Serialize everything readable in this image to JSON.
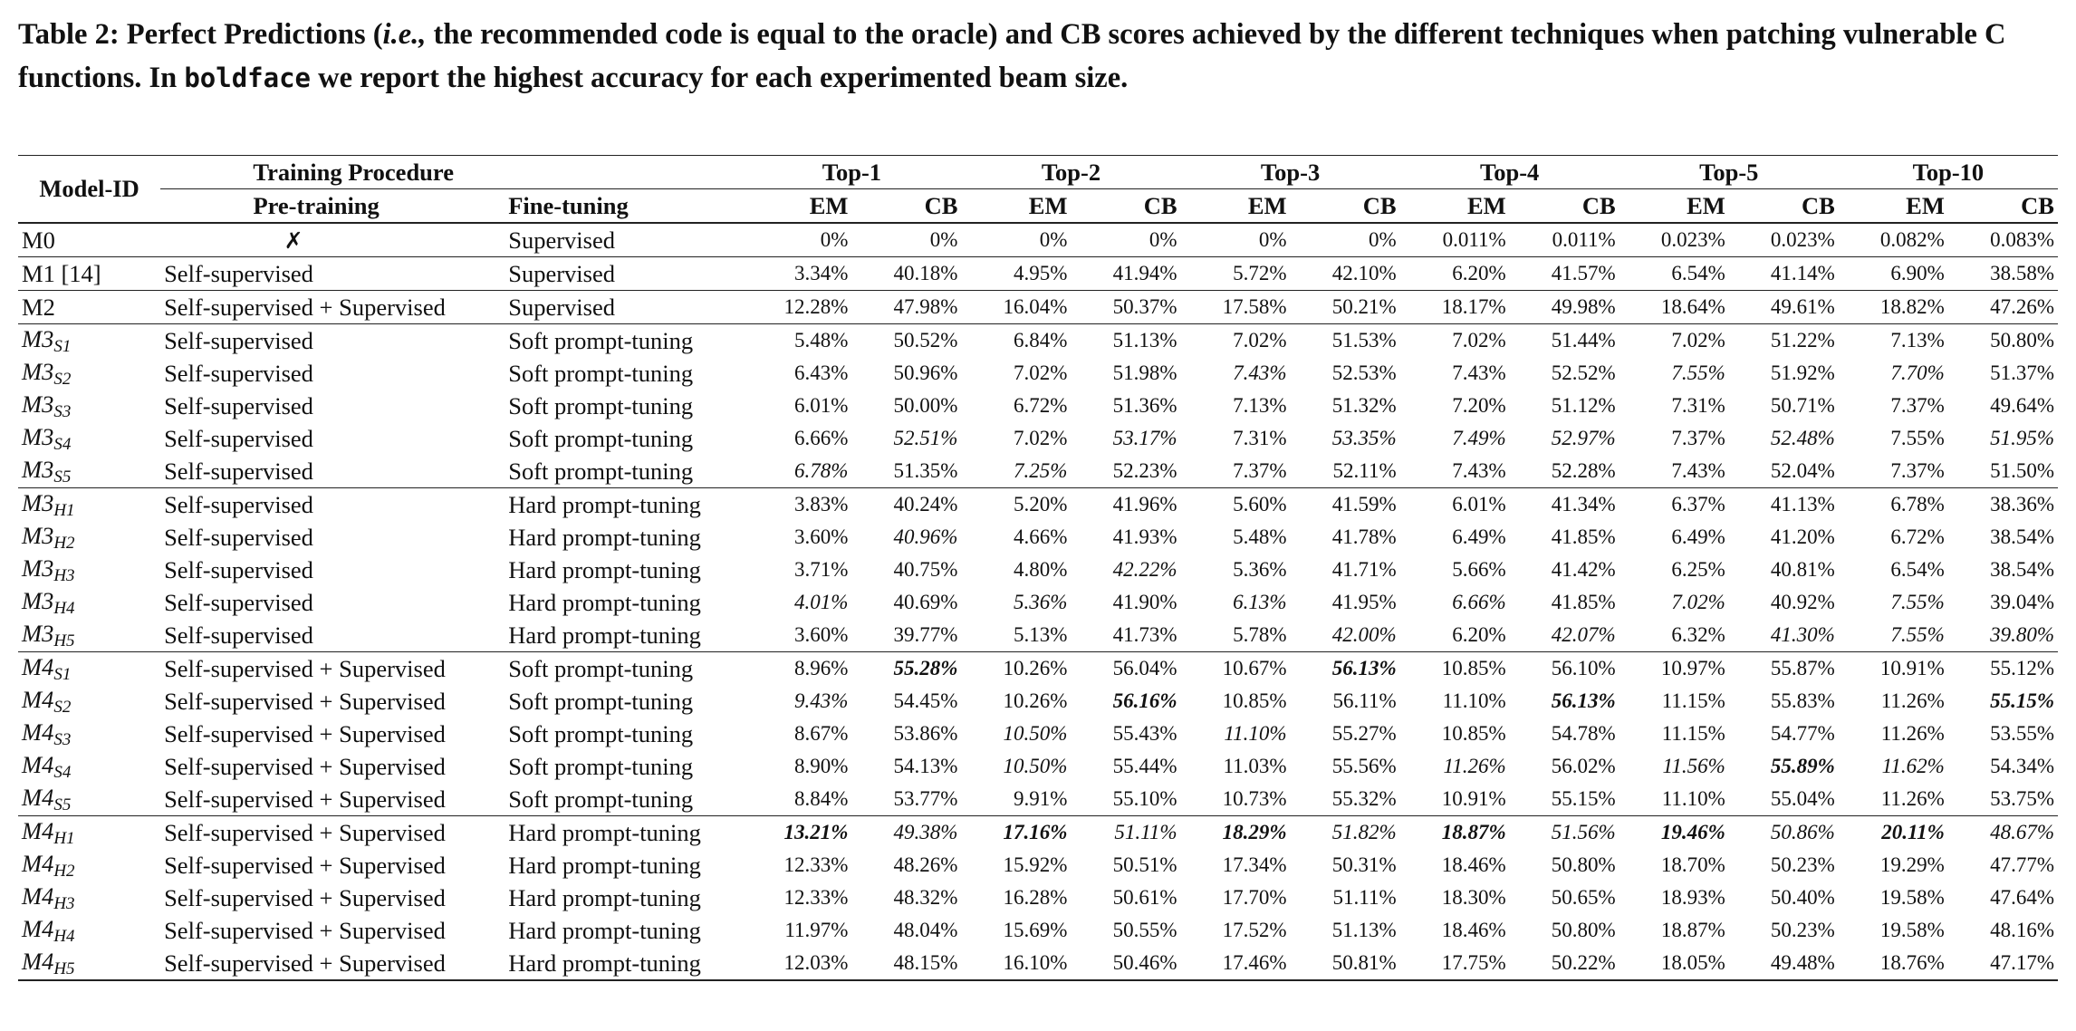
{
  "caption": {
    "label": "Table 2:",
    "part1": " Perfect Predictions (",
    "ie": "i.e.,",
    "part2": " the recommended code is equal to the oracle) and CB scores achieved by the different techniques when patching vulnerable C functions. In ",
    "boldface": "boldface",
    "part3": " we report the highest accuracy for each experimented beam size."
  },
  "header": {
    "model_id": "Model-ID",
    "training_procedure": "Training Procedure",
    "pre_training": "Pre-training",
    "fine_tuning": "Fine-tuning",
    "tops": [
      "Top-1",
      "Top-2",
      "Top-3",
      "Top-4",
      "Top-5",
      "Top-10"
    ],
    "em": "EM",
    "cb": "CB"
  },
  "rows": [
    {
      "m": "M0",
      "sub": "",
      "ref": "",
      "pre": "✗",
      "fine": "Supervised",
      "vals": [
        "0%",
        "0%",
        "0%",
        "0%",
        "0%",
        "0%",
        "0.011%",
        "0.011%",
        "0.023%",
        "0.023%",
        "0.082%",
        "0.083%"
      ],
      "it": [],
      "bd": [],
      "sep": false
    },
    {
      "m": "M1 [14]",
      "sub": "",
      "ref": "",
      "pre": "Self-supervised",
      "fine": "Supervised",
      "vals": [
        "3.34%",
        "40.18%",
        "4.95%",
        "41.94%",
        "5.72%",
        "42.10%",
        "6.20%",
        "41.57%",
        "6.54%",
        "41.14%",
        "6.90%",
        "38.58%"
      ],
      "it": [],
      "bd": [],
      "sep": true
    },
    {
      "m": "M2",
      "sub": "",
      "ref": "",
      "pre": "Self-supervised + Supervised",
      "fine": "Supervised",
      "vals": [
        "12.28%",
        "47.98%",
        "16.04%",
        "50.37%",
        "17.58%",
        "50.21%",
        "18.17%",
        "49.98%",
        "18.64%",
        "49.61%",
        "18.82%",
        "47.26%"
      ],
      "it": [],
      "bd": [],
      "sep": true
    },
    {
      "m": "M3",
      "sub": "S1",
      "pre": "Self-supervised",
      "fine": "Soft prompt-tuning",
      "vals": [
        "5.48%",
        "50.52%",
        "6.84%",
        "51.13%",
        "7.02%",
        "51.53%",
        "7.02%",
        "51.44%",
        "7.02%",
        "51.22%",
        "7.13%",
        "50.80%"
      ],
      "it": [],
      "bd": [],
      "sep": true
    },
    {
      "m": "M3",
      "sub": "S2",
      "pre": "Self-supervised",
      "fine": "Soft prompt-tuning",
      "vals": [
        "6.43%",
        "50.96%",
        "7.02%",
        "51.98%",
        "7.43%",
        "52.53%",
        "7.43%",
        "52.52%",
        "7.55%",
        "51.92%",
        "7.70%",
        "51.37%"
      ],
      "it": [
        4,
        8,
        10
      ],
      "bd": [],
      "sep": false
    },
    {
      "m": "M3",
      "sub": "S3",
      "pre": "Self-supervised",
      "fine": "Soft prompt-tuning",
      "vals": [
        "6.01%",
        "50.00%",
        "6.72%",
        "51.36%",
        "7.13%",
        "51.32%",
        "7.20%",
        "51.12%",
        "7.31%",
        "50.71%",
        "7.37%",
        "49.64%"
      ],
      "it": [],
      "bd": [],
      "sep": false
    },
    {
      "m": "M3",
      "sub": "S4",
      "pre": "Self-supervised",
      "fine": "Soft prompt-tuning",
      "vals": [
        "6.66%",
        "52.51%",
        "7.02%",
        "53.17%",
        "7.31%",
        "53.35%",
        "7.49%",
        "52.97%",
        "7.37%",
        "52.48%",
        "7.55%",
        "51.95%"
      ],
      "it": [
        1,
        3,
        5,
        6,
        7,
        9,
        11
      ],
      "bd": [],
      "sep": false
    },
    {
      "m": "M3",
      "sub": "S5",
      "pre": "Self-supervised",
      "fine": "Soft prompt-tuning",
      "vals": [
        "6.78%",
        "51.35%",
        "7.25%",
        "52.23%",
        "7.37%",
        "52.11%",
        "7.43%",
        "52.28%",
        "7.43%",
        "52.04%",
        "7.37%",
        "51.50%"
      ],
      "it": [
        0,
        2
      ],
      "bd": [],
      "sep": false
    },
    {
      "m": "M3",
      "sub": "H1",
      "pre": "Self-supervised",
      "fine": "Hard prompt-tuning",
      "vals": [
        "3.83%",
        "40.24%",
        "5.20%",
        "41.96%",
        "5.60%",
        "41.59%",
        "6.01%",
        "41.34%",
        "6.37%",
        "41.13%",
        "6.78%",
        "38.36%"
      ],
      "it": [],
      "bd": [],
      "sep": true
    },
    {
      "m": "M3",
      "sub": "H2",
      "pre": "Self-supervised",
      "fine": "Hard prompt-tuning",
      "vals": [
        "3.60%",
        "40.96%",
        "4.66%",
        "41.93%",
        "5.48%",
        "41.78%",
        "6.49%",
        "41.85%",
        "6.49%",
        "41.20%",
        "6.72%",
        "38.54%"
      ],
      "it": [
        1
      ],
      "bd": [],
      "sep": false
    },
    {
      "m": "M3",
      "sub": "H3",
      "pre": "Self-supervised",
      "fine": "Hard prompt-tuning",
      "vals": [
        "3.71%",
        "40.75%",
        "4.80%",
        "42.22%",
        "5.36%",
        "41.71%",
        "5.66%",
        "41.42%",
        "6.25%",
        "40.81%",
        "6.54%",
        "38.54%"
      ],
      "it": [
        3
      ],
      "bd": [],
      "sep": false
    },
    {
      "m": "M3",
      "sub": "H4",
      "pre": "Self-supervised",
      "fine": "Hard prompt-tuning",
      "vals": [
        "4.01%",
        "40.69%",
        "5.36%",
        "41.90%",
        "6.13%",
        "41.95%",
        "6.66%",
        "41.85%",
        "7.02%",
        "40.92%",
        "7.55%",
        "39.04%"
      ],
      "it": [
        0,
        2,
        4,
        6,
        8,
        10
      ],
      "bd": [],
      "sep": false
    },
    {
      "m": "M3",
      "sub": "H5",
      "pre": "Self-supervised",
      "fine": "Hard prompt-tuning",
      "vals": [
        "3.60%",
        "39.77%",
        "5.13%",
        "41.73%",
        "5.78%",
        "42.00%",
        "6.20%",
        "42.07%",
        "6.32%",
        "41.30%",
        "7.55%",
        "39.80%"
      ],
      "it": [
        5,
        7,
        9,
        10,
        11
      ],
      "bd": [],
      "sep": false
    },
    {
      "m": "M4",
      "sub": "S1",
      "pre": "Self-supervised + Supervised",
      "fine": "Soft prompt-tuning",
      "vals": [
        "8.96%",
        "55.28%",
        "10.26%",
        "56.04%",
        "10.67%",
        "56.13%",
        "10.85%",
        "56.10%",
        "10.97%",
        "55.87%",
        "10.91%",
        "55.12%"
      ],
      "it": [
        1,
        5
      ],
      "bd": [
        1,
        5
      ],
      "sep": true
    },
    {
      "m": "M4",
      "sub": "S2",
      "pre": "Self-supervised + Supervised",
      "fine": "Soft prompt-tuning",
      "vals": [
        "9.43%",
        "54.45%",
        "10.26%",
        "56.16%",
        "10.85%",
        "56.11%",
        "11.10%",
        "56.13%",
        "11.15%",
        "55.83%",
        "11.26%",
        "55.15%"
      ],
      "it": [
        0,
        3,
        7,
        11
      ],
      "bd": [
        3,
        7,
        11
      ],
      "sep": false
    },
    {
      "m": "M4",
      "sub": "S3",
      "pre": "Self-supervised + Supervised",
      "fine": "Soft prompt-tuning",
      "vals": [
        "8.67%",
        "53.86%",
        "10.50%",
        "55.43%",
        "11.10%",
        "55.27%",
        "10.85%",
        "54.78%",
        "11.15%",
        "54.77%",
        "11.26%",
        "53.55%"
      ],
      "it": [
        2,
        4
      ],
      "bd": [],
      "sep": false
    },
    {
      "m": "M4",
      "sub": "S4",
      "pre": "Self-supervised + Supervised",
      "fine": "Soft prompt-tuning",
      "vals": [
        "8.90%",
        "54.13%",
        "10.50%",
        "55.44%",
        "11.03%",
        "55.56%",
        "11.26%",
        "56.02%",
        "11.56%",
        "55.89%",
        "11.62%",
        "54.34%"
      ],
      "it": [
        2,
        6,
        8,
        9,
        10
      ],
      "bd": [
        9
      ],
      "sep": false
    },
    {
      "m": "M4",
      "sub": "S5",
      "pre": "Self-supervised + Supervised",
      "fine": "Soft prompt-tuning",
      "vals": [
        "8.84%",
        "53.77%",
        "9.91%",
        "55.10%",
        "10.73%",
        "55.32%",
        "10.91%",
        "55.15%",
        "11.10%",
        "55.04%",
        "11.26%",
        "53.75%"
      ],
      "it": [],
      "bd": [],
      "sep": false
    },
    {
      "m": "M4",
      "sub": "H1",
      "pre": "Self-supervised + Supervised",
      "fine": "Hard prompt-tuning",
      "vals": [
        "13.21%",
        "49.38%",
        "17.16%",
        "51.11%",
        "18.29%",
        "51.82%",
        "18.87%",
        "51.56%",
        "19.46%",
        "50.86%",
        "20.11%",
        "48.67%"
      ],
      "it": [
        0,
        1,
        2,
        3,
        4,
        5,
        6,
        7,
        8,
        9,
        10,
        11
      ],
      "bd": [
        0,
        2,
        4,
        6,
        8,
        10
      ],
      "sep": true
    },
    {
      "m": "M4",
      "sub": "H2",
      "pre": "Self-supervised + Supervised",
      "fine": "Hard prompt-tuning",
      "vals": [
        "12.33%",
        "48.26%",
        "15.92%",
        "50.51%",
        "17.34%",
        "50.31%",
        "18.46%",
        "50.80%",
        "18.70%",
        "50.23%",
        "19.29%",
        "47.77%"
      ],
      "it": [],
      "bd": [],
      "sep": false
    },
    {
      "m": "M4",
      "sub": "H3",
      "pre": "Self-supervised + Supervised",
      "fine": "Hard prompt-tuning",
      "vals": [
        "12.33%",
        "48.32%",
        "16.28%",
        "50.61%",
        "17.70%",
        "51.11%",
        "18.30%",
        "50.65%",
        "18.93%",
        "50.40%",
        "19.58%",
        "47.64%"
      ],
      "it": [],
      "bd": [],
      "sep": false
    },
    {
      "m": "M4",
      "sub": "H4",
      "pre": "Self-supervised + Supervised",
      "fine": "Hard prompt-tuning",
      "vals": [
        "11.97%",
        "48.04%",
        "15.69%",
        "50.55%",
        "17.52%",
        "51.13%",
        "18.46%",
        "50.80%",
        "18.87%",
        "50.23%",
        "19.58%",
        "48.16%"
      ],
      "it": [],
      "bd": [],
      "sep": false
    },
    {
      "m": "M4",
      "sub": "H5",
      "pre": "Self-supervised + Supervised",
      "fine": "Hard prompt-tuning",
      "vals": [
        "12.03%",
        "48.15%",
        "16.10%",
        "50.46%",
        "17.46%",
        "50.81%",
        "17.75%",
        "50.22%",
        "18.05%",
        "49.48%",
        "18.76%",
        "47.17%"
      ],
      "it": [],
      "bd": [],
      "sep": false
    }
  ]
}
